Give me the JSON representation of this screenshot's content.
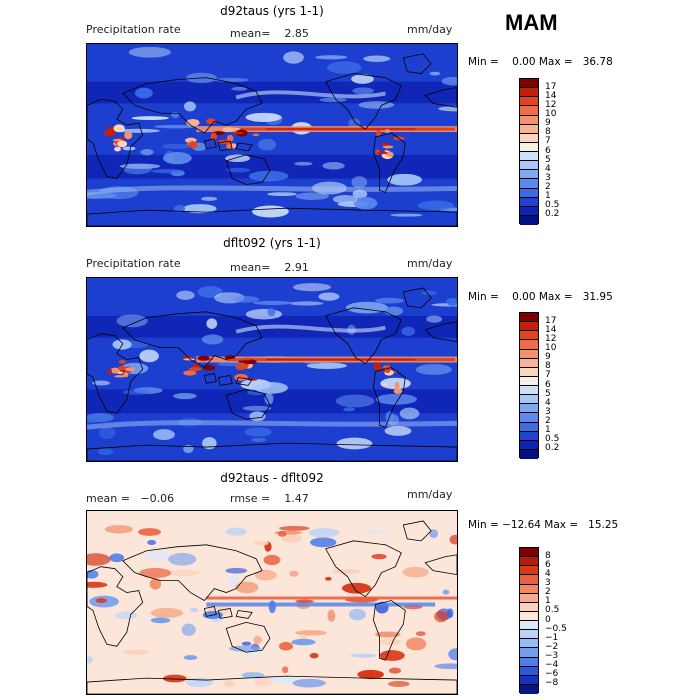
{
  "season": "MAM",
  "panels": [
    {
      "title": "d92taus (yrs 1-1)",
      "left_label": "Precipitation rate",
      "center_label": "mean=    2.85",
      "right_label": "mm/day",
      "minmax": "Min =    0.00 Max =   36.78",
      "colorbar": {
        "labels": [
          "17",
          "14",
          "12",
          "10",
          "9",
          "8",
          "7",
          "6",
          "5",
          "4",
          "3",
          "2",
          "1",
          "0.5",
          "0.2"
        ],
        "colors": [
          "#7f0000",
          "#c3200b",
          "#e0441e",
          "#ee6d48",
          "#f4916f",
          "#f8b393",
          "#fbd4bc",
          "#f5f0e7",
          "#cfe0fb",
          "#a9c7f7",
          "#7ea9f1",
          "#5b8aec",
          "#3b6ce6",
          "#2143cf",
          "#0f24b3",
          "#03107d"
        ]
      },
      "style": "precip"
    },
    {
      "title": "dflt092 (yrs 1-1)",
      "left_label": "Precipitation rate",
      "center_label": "mean=    2.91",
      "right_label": "mm/day",
      "minmax": "Min =    0.00 Max =   31.95",
      "colorbar": {
        "labels": [
          "17",
          "14",
          "12",
          "10",
          "9",
          "8",
          "7",
          "6",
          "5",
          "4",
          "3",
          "2",
          "1",
          "0.5",
          "0.2"
        ],
        "colors": [
          "#7f0000",
          "#c3200b",
          "#e0441e",
          "#ee6d48",
          "#f4916f",
          "#f8b393",
          "#fbd4bc",
          "#f5f0e7",
          "#cfe0fb",
          "#a9c7f7",
          "#7ea9f1",
          "#5b8aec",
          "#3b6ce6",
          "#2143cf",
          "#0f24b3",
          "#03107d"
        ]
      },
      "style": "precip"
    },
    {
      "title": "d92taus - dflt092",
      "left_label": "mean =   −0.06",
      "center_label": "rmse =    1.47",
      "right_label": "mm/day",
      "minmax": "Min = −12.64 Max =   15.25",
      "colorbar": {
        "labels": [
          "8",
          "6",
          "4",
          "3",
          "2",
          "1",
          "0.5",
          "0",
          "−0.5",
          "−1",
          "−2",
          "−3",
          "−4",
          "−6",
          "−8"
        ],
        "colors": [
          "#7f0000",
          "#b71a09",
          "#d8391a",
          "#eb6140",
          "#f28863",
          "#f6aa89",
          "#fbd1bb",
          "#fbe6d9",
          "#dce8fb",
          "#bcd3f9",
          "#97bbf4",
          "#739eef",
          "#4f7eea",
          "#2d58dc",
          "#1432bc",
          "#061685"
        ]
      },
      "style": "diff"
    }
  ]
}
